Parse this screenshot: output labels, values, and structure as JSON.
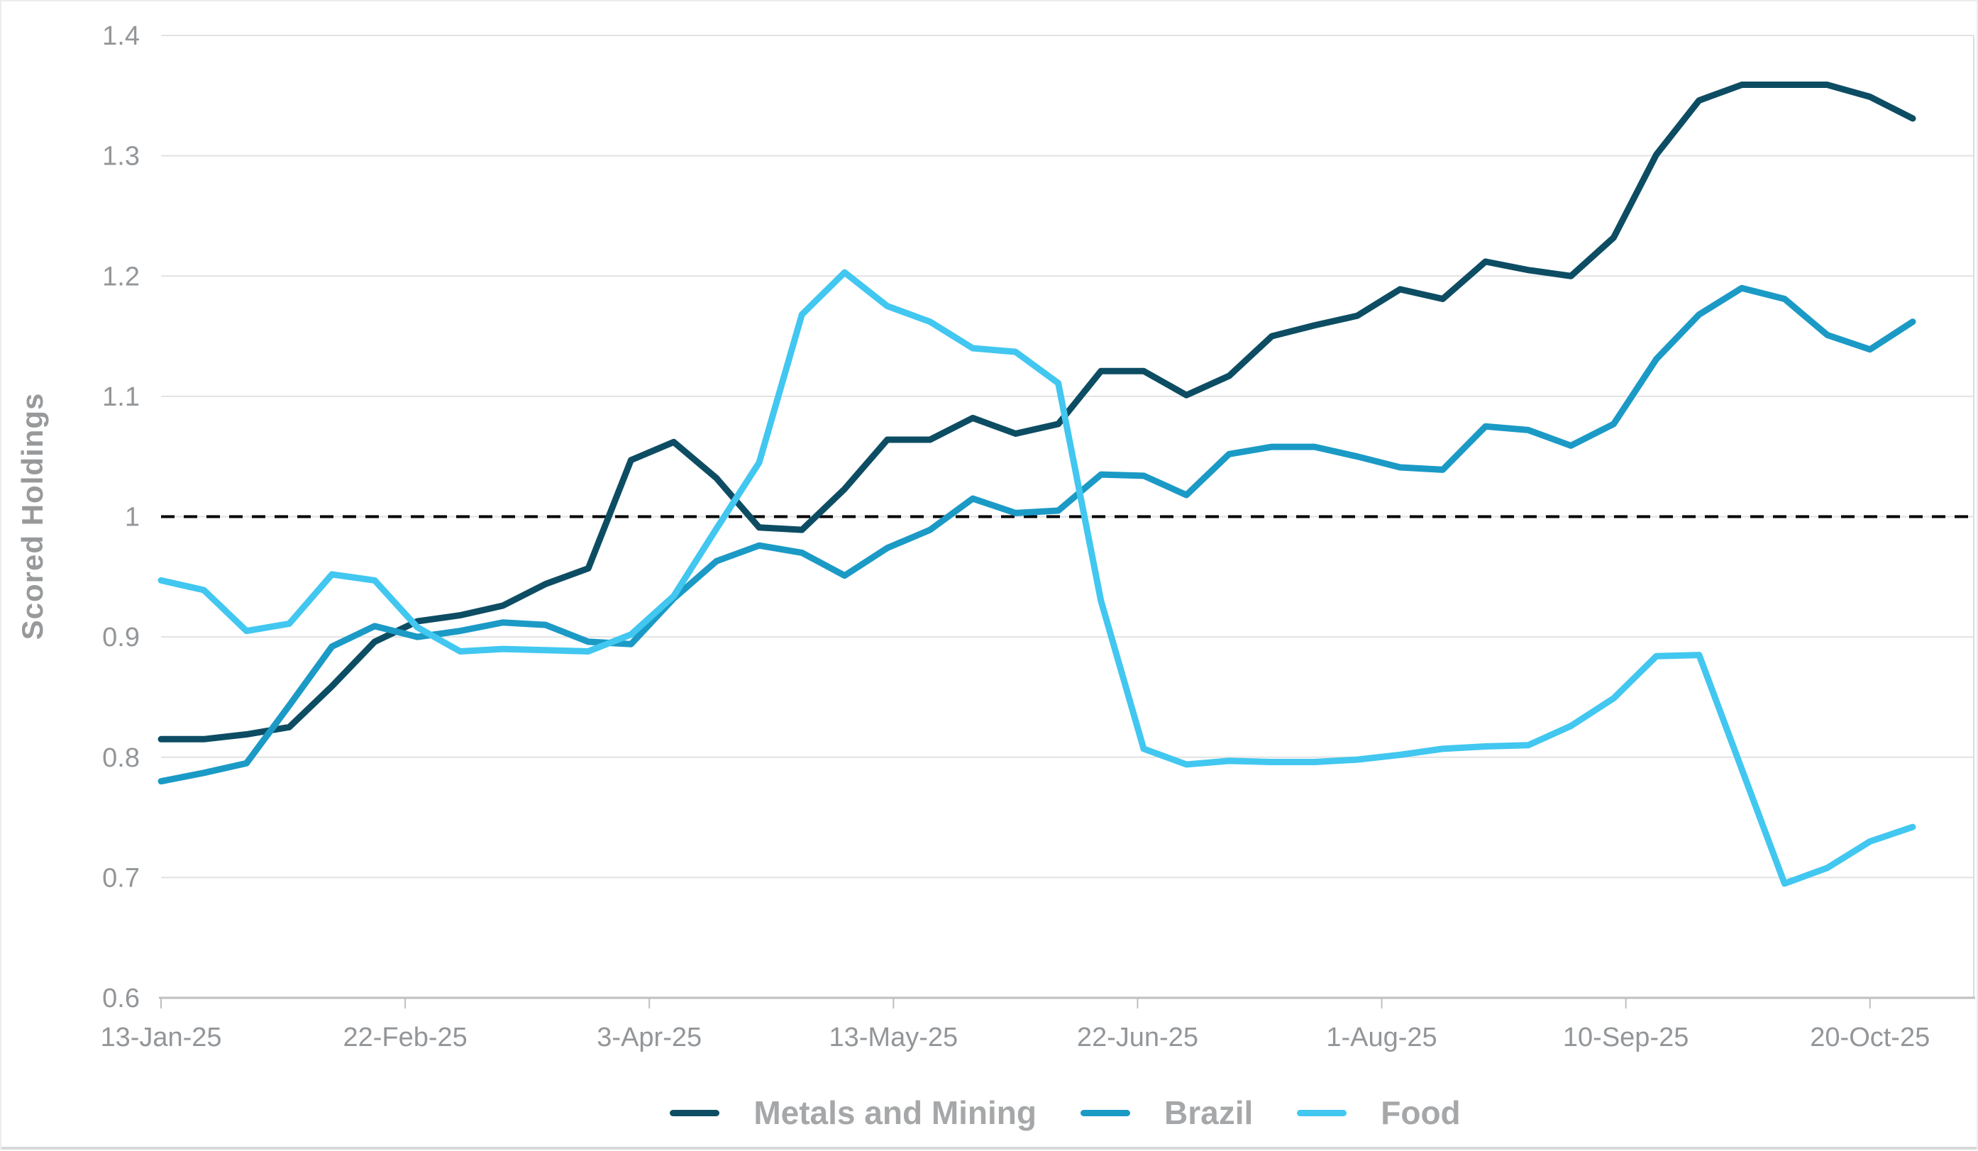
{
  "chart_data": {
    "type": "line",
    "title": "",
    "ylabel": "Scored Holdings",
    "xlabel": "",
    "ylim": [
      0.6,
      1.4
    ],
    "ytick_values": [
      0.6,
      0.7,
      0.8,
      0.9,
      1.0,
      1.1,
      1.2,
      1.3,
      1.4
    ],
    "ytick_labels": [
      "0.6",
      "0.7",
      "0.8",
      "0.9",
      "1",
      "1.1",
      "1.2",
      "1.3",
      "1.4"
    ],
    "x_tick_labels": [
      "13-Jan-25",
      "22-Feb-25",
      "3-Apr-25",
      "13-May-25",
      "22-Jun-25",
      "1-Aug-25",
      "10-Sep-25",
      "20-Oct-25"
    ],
    "x_tick_interval_days": 40,
    "point_interval_days": 7,
    "x_domain_days": 297,
    "grid": "horizontal",
    "legend_position": "bottom",
    "reference_line": {
      "value": 1.0,
      "style": "dashed",
      "color": "#000000"
    },
    "colors": {
      "gridline": "#e2e2e2",
      "axis_line": "#bfbfbf",
      "tick_label": "#939699",
      "plot_right_border": "#dcdcdc"
    },
    "series": [
      {
        "name": "Metals and Mining",
        "color": "#0d4d63",
        "values": [
          0.815,
          0.815,
          0.819,
          0.825,
          0.859,
          0.896,
          0.913,
          0.918,
          0.926,
          0.944,
          0.957,
          1.047,
          1.062,
          1.032,
          0.991,
          0.989,
          1.023,
          1.064,
          1.064,
          1.082,
          1.069,
          1.077,
          1.121,
          1.121,
          1.101,
          1.117,
          1.15,
          1.159,
          1.167,
          1.189,
          1.181,
          1.212,
          1.205,
          1.2,
          1.232,
          1.301,
          1.346,
          1.359,
          1.359,
          1.359,
          1.349,
          1.331
        ]
      },
      {
        "name": "Brazil",
        "color": "#1b9ac6",
        "values": [
          0.78,
          0.787,
          0.795,
          0.843,
          0.892,
          0.909,
          0.9,
          0.905,
          0.912,
          0.91,
          0.896,
          0.894,
          0.932,
          0.963,
          0.976,
          0.97,
          0.951,
          0.974,
          0.989,
          1.015,
          1.003,
          1.005,
          1.035,
          1.034,
          1.018,
          1.052,
          1.058,
          1.058,
          1.05,
          1.041,
          1.039,
          1.075,
          1.072,
          1.059,
          1.077,
          1.131,
          1.168,
          1.19,
          1.181,
          1.151,
          1.139,
          1.162
        ]
      },
      {
        "name": "Food",
        "color": "#41c7f0",
        "values": [
          0.947,
          0.939,
          0.905,
          0.911,
          0.952,
          0.947,
          0.908,
          0.888,
          0.89,
          0.889,
          0.888,
          0.902,
          0.934,
          0.99,
          1.045,
          1.168,
          1.203,
          1.175,
          1.162,
          1.14,
          1.137,
          1.111,
          0.93,
          0.807,
          0.794,
          0.797,
          0.796,
          0.796,
          0.798,
          0.802,
          0.807,
          0.809,
          0.81,
          0.826,
          0.849,
          0.884,
          0.885,
          0.79,
          0.695,
          0.708,
          0.73,
          0.742
        ]
      }
    ]
  }
}
